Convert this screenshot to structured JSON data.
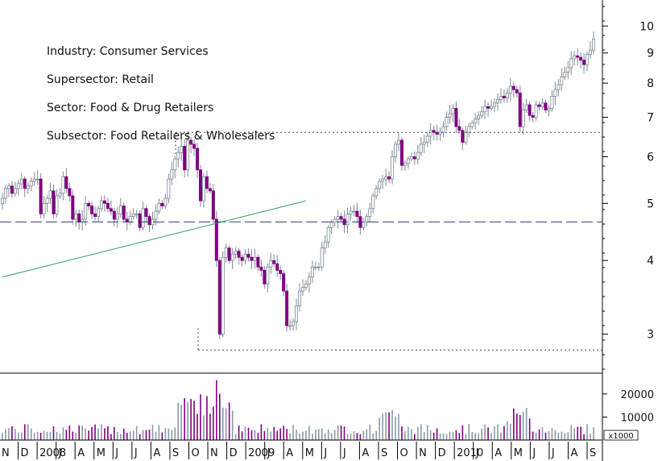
{
  "info": {
    "industry": "Industry: Consumer Services",
    "supersector": "Supersector: Retail",
    "sector": "Sector: Food & Drug Retailers",
    "subsector": "Subsector: Food Retailers & Wholesalers"
  },
  "chart_data": {
    "type": "candlestick",
    "title": "",
    "price_axis": {
      "scale": "log",
      "ticks": [
        3,
        4,
        5,
        6,
        7,
        8,
        9,
        10
      ],
      "range": [
        2.6,
        11.0
      ]
    },
    "volume_axis": {
      "ticks": [
        10000,
        20000
      ],
      "tick_labels": [
        "10000",
        "20000"
      ],
      "unit_label": "x1000",
      "range": [
        0,
        28000
      ]
    },
    "x_labels": [
      "N",
      "D",
      "2008",
      "J",
      "A",
      "M",
      "J",
      "J",
      "A",
      "S",
      "O",
      "N",
      "D",
      "2009",
      "J",
      "A",
      "M",
      "J",
      "J",
      "A",
      "S",
      "O",
      "N",
      "D",
      "2010",
      "J",
      "A",
      "M",
      "J",
      "J",
      "A",
      "S"
    ],
    "bull_color": "#ffffff",
    "bear_color": "#800080",
    "volume_color": "#8a9aa6",
    "horizontal_lines": [
      {
        "style": "dashed",
        "value": 4.65,
        "color": "#3a3a78"
      },
      {
        "style": "dotted",
        "value": 6.6,
        "color": "#444444"
      },
      {
        "style": "dotted",
        "value": 2.82,
        "color": "#444444"
      }
    ],
    "trendline": {
      "from": {
        "week": 0,
        "price": 3.75
      },
      "to": {
        "week": 95,
        "price": 5.05
      },
      "color": "#2e9e5a"
    },
    "closes": [
      5.1,
      5.3,
      5.35,
      5.2,
      5.3,
      5.4,
      5.5,
      5.3,
      5.35,
      5.45,
      5.5,
      5.5,
      4.8,
      5.0,
      5.1,
      5.25,
      4.8,
      5.15,
      5.2,
      5.55,
      5.3,
      5.15,
      4.7,
      4.8,
      4.65,
      4.7,
      5.0,
      4.95,
      4.8,
      4.75,
      4.9,
      5.05,
      5.0,
      4.9,
      4.85,
      4.7,
      4.8,
      4.95,
      4.7,
      4.65,
      4.75,
      4.8,
      4.8,
      4.55,
      4.9,
      4.75,
      4.6,
      4.7,
      4.85,
      5.0,
      4.95,
      5.1,
      5.5,
      5.7,
      5.95,
      6.1,
      6.25,
      5.7,
      6.4,
      6.3,
      6.2,
      5.7,
      5.05,
      5.55,
      5.3,
      5.25,
      4.7,
      4.0,
      3.0,
      4.05,
      4.2,
      4.0,
      4.1,
      4.15,
      4.05,
      4.0,
      4.1,
      4.05,
      4.0,
      4.05,
      3.9,
      3.85,
      3.65,
      3.9,
      4.0,
      3.95,
      3.85,
      3.8,
      3.55,
      3.1,
      3.1,
      3.15,
      3.35,
      3.55,
      3.6,
      3.65,
      3.75,
      3.9,
      3.9,
      3.9,
      4.2,
      4.3,
      4.55,
      4.65,
      4.7,
      4.75,
      4.7,
      4.6,
      4.8,
      4.85,
      4.85,
      4.75,
      4.55,
      4.65,
      4.75,
      4.9,
      5.15,
      5.3,
      5.45,
      5.5,
      5.55,
      5.5,
      6.0,
      6.3,
      6.4,
      5.8,
      5.85,
      5.95,
      6.0,
      5.95,
      6.1,
      6.3,
      6.35,
      6.5,
      6.65,
      6.6,
      6.55,
      6.6,
      6.75,
      7.0,
      7.1,
      7.25,
      6.75,
      6.65,
      6.35,
      6.6,
      6.75,
      6.85,
      6.95,
      7.05,
      7.15,
      7.3,
      7.25,
      7.3,
      7.4,
      7.5,
      7.6,
      7.55,
      7.7,
      7.9,
      7.8,
      7.7,
      6.75,
      7.2,
      7.35,
      7.05,
      7.0,
      7.35,
      7.3,
      7.4,
      7.2,
      7.25,
      7.6,
      7.8,
      7.95,
      8.2,
      8.35,
      8.5,
      8.8,
      8.9,
      8.85,
      8.75,
      8.6,
      8.95,
      9.1,
      9.5
    ]
  }
}
